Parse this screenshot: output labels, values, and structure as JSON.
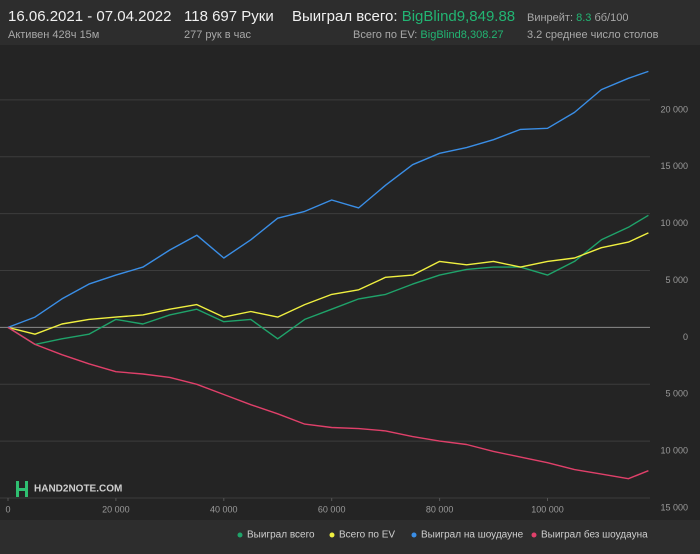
{
  "header": {
    "dates": "16.06.2021 - 07.04.2022",
    "active": "Активен 428ч 15м",
    "hands": "118 697 Руки",
    "per_hour": "277 рук в час",
    "won_label": "Выиграл всего:",
    "won_value": "BigBlind9,849.88",
    "ev_label": "Всего по EV:",
    "ev_value": "BigBlind8,308.27",
    "winrate_label": "Винрейт:",
    "winrate_value": "8.3",
    "winrate_unit": "бб/100",
    "tables": "3.2 среднее число столов",
    "logo": "HAND2NOTE.COM"
  },
  "chart_data": {
    "type": "line",
    "x": [
      0,
      5000,
      10000,
      15000,
      20000,
      25000,
      30000,
      35000,
      40000,
      45000,
      50000,
      55000,
      60000,
      65000,
      70000,
      75000,
      80000,
      85000,
      90000,
      95000,
      100000,
      105000,
      110000,
      115000,
      118697
    ],
    "series": [
      {
        "name": "Выиграл всего",
        "color": "#1fa36a",
        "values": [
          0,
          -1500,
          -1000,
          -600,
          700,
          300,
          1100,
          1600,
          500,
          700,
          -1000,
          700,
          1600,
          2500,
          2900,
          3800,
          4600,
          5100,
          5300,
          5300,
          4600,
          5800,
          7700,
          8800,
          9850
        ]
      },
      {
        "name": "Всего по EV",
        "color": "#f0f040",
        "values": [
          0,
          -600,
          300,
          700,
          900,
          1100,
          1600,
          2000,
          900,
          1400,
          900,
          2000,
          2900,
          3300,
          4400,
          4600,
          5800,
          5500,
          5800,
          5300,
          5800,
          6100,
          7000,
          7500,
          8308
        ]
      },
      {
        "name": "Выиграл на шоудауне",
        "color": "#3a8ee6",
        "values": [
          0,
          900,
          2500,
          3800,
          4600,
          5300,
          6800,
          8100,
          6100,
          7700,
          9600,
          10200,
          11200,
          10500,
          12500,
          14300,
          15300,
          15800,
          16500,
          17400,
          17500,
          18900,
          20900,
          21900,
          22500
        ]
      },
      {
        "name": "Выиграл без шоудауна",
        "color": "#e0406a",
        "values": [
          0,
          -1500,
          -2400,
          -3200,
          -3900,
          -4100,
          -4400,
          -5000,
          -5900,
          -6800,
          -7600,
          -8500,
          -8800,
          -8900,
          -9100,
          -9600,
          -10000,
          -10300,
          -10900,
          -11400,
          -11900,
          -12500,
          -12900,
          -13300,
          -12600
        ]
      }
    ],
    "xlim": [
      0,
      119000
    ],
    "ylim": [
      -15000,
      25000
    ],
    "xticks": [
      0,
      {
        "value": 20000,
        "label": "20 000"
      },
      {
        "value": 40000,
        "label": "40 000"
      },
      {
        "value": 60000,
        "label": "60 000"
      },
      {
        "value": 80000,
        "label": "80 000"
      },
      {
        "value": 100000,
        "label": "100 000"
      }
    ],
    "yticks": [
      {
        "value": -15000,
        "label": "15 000"
      },
      {
        "value": -10000,
        "label": "10 000"
      },
      {
        "value": -5000,
        "label": "5 000"
      },
      0,
      {
        "value": 5000,
        "label": "5 000"
      },
      {
        "value": 10000,
        "label": "10 000"
      },
      {
        "value": 15000,
        "label": "15 000"
      },
      {
        "value": 20000,
        "label": "20 000"
      }
    ],
    "grid": true
  }
}
